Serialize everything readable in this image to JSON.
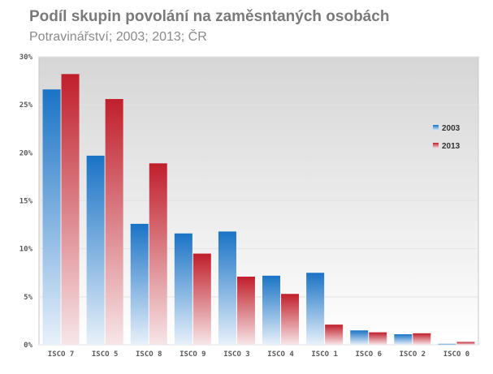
{
  "title": "Podíl skupin povolání na zaměsntaných osobách",
  "subtitle": "Potravinářství; 2003; 2013; ČR",
  "chart_data": {
    "type": "bar",
    "categories": [
      "ISCO 7",
      "ISCO 5",
      "ISCO 8",
      "ISCO 9",
      "ISCO 3",
      "ISCO 4",
      "ISCO 1",
      "ISCO 6",
      "ISCO 2",
      "ISCO 0"
    ],
    "series": [
      {
        "name": "2003",
        "values": [
          26.6,
          19.7,
          12.6,
          11.6,
          11.8,
          7.2,
          7.5,
          1.5,
          1.1,
          0.1
        ]
      },
      {
        "name": "2013",
        "values": [
          28.2,
          25.6,
          18.9,
          9.5,
          7.1,
          5.3,
          2.1,
          1.3,
          1.2,
          0.3
        ]
      }
    ],
    "y_ticks": [
      "0%",
      "5%",
      "10%",
      "15%",
      "20%",
      "25%",
      "30%"
    ],
    "ylim": [
      0,
      30
    ],
    "grid": true,
    "legend_position": "right",
    "colors": {
      "2003": "#1f78c8",
      "2013": "#c0202a"
    }
  }
}
